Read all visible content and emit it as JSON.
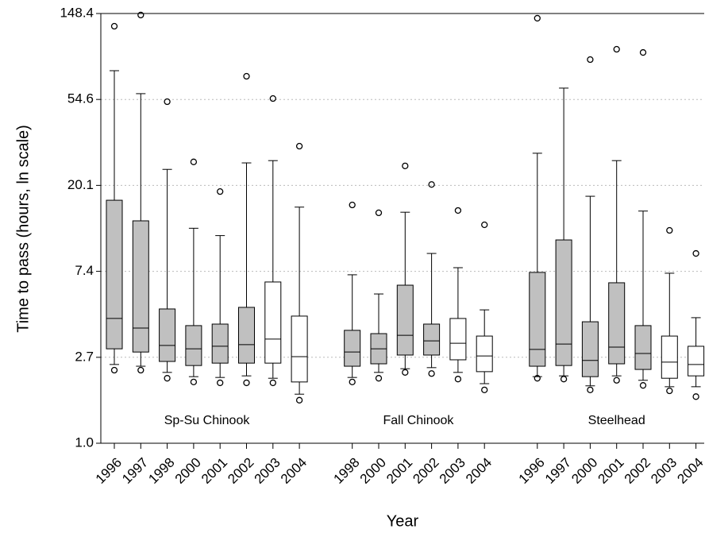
{
  "chart_data": {
    "type": "box",
    "y_label": "Time to pass (hours, ln scale)",
    "x_label": "Year",
    "log_scale": true,
    "grid": true,
    "ylim": [
      1,
      148.41
    ],
    "yticks": [
      {
        "value": 1,
        "label": "1.0"
      },
      {
        "value": 2.718,
        "label": "2.7"
      },
      {
        "value": 7.389,
        "label": "7.4"
      },
      {
        "value": 20.09,
        "label": "20.1"
      },
      {
        "value": 54.6,
        "label": "54.6"
      },
      {
        "value": 148.41,
        "label": "148.4"
      }
    ],
    "groups": [
      {
        "name": "Sp-Su Chinook",
        "boxes": [
          {
            "category": "1996",
            "color": "#c0c0c0",
            "whislo": 2.5,
            "q1": 3.0,
            "med": 4.27,
            "q3": 16.9,
            "whishi": 76.3,
            "fliers": [
              128,
              2.34
            ]
          },
          {
            "category": "1997",
            "color": "#c0c0c0",
            "whislo": 2.45,
            "q1": 2.89,
            "med": 3.82,
            "q3": 13.3,
            "whishi": 58.4,
            "fliers": [
              145.8,
              2.34
            ]
          },
          {
            "category": "1998",
            "color": "#c0c0c0",
            "whislo": 2.28,
            "q1": 2.59,
            "med": 3.12,
            "q3": 4.77,
            "whishi": 24.2,
            "fliers": [
              53.2,
              2.13
            ]
          },
          {
            "category": "2000",
            "color": "#c0c0c0",
            "whislo": 2.17,
            "q1": 2.47,
            "med": 3.0,
            "q3": 3.93,
            "whishi": 12.2,
            "fliers": [
              26.4,
              2.04
            ]
          },
          {
            "category": "2001",
            "color": "#c0c0c0",
            "whislo": 2.15,
            "q1": 2.54,
            "med": 3.09,
            "q3": 4.0,
            "whishi": 11.2,
            "fliers": [
              18.7,
              2.02
            ]
          },
          {
            "category": "2002",
            "color": "#c0c0c0",
            "whislo": 2.19,
            "q1": 2.54,
            "med": 3.15,
            "q3": 4.86,
            "whishi": 26.1,
            "fliers": [
              71.5,
              2.02
            ]
          },
          {
            "category": "2003",
            "color": "#ffffff",
            "whislo": 2.13,
            "q1": 2.54,
            "med": 3.36,
            "q3": 6.53,
            "whishi": 26.8,
            "fliers": [
              55.2,
              2.02
            ]
          },
          {
            "category": "2004",
            "color": "#ffffff",
            "whislo": 1.77,
            "q1": 2.04,
            "med": 2.74,
            "q3": 4.39,
            "whishi": 15.6,
            "fliers": [
              31.7,
              1.65
            ]
          }
        ]
      },
      {
        "name": "Fall Chinook",
        "boxes": [
          {
            "category": "1998",
            "color": "#c0c0c0",
            "whislo": 2.15,
            "q1": 2.45,
            "med": 2.89,
            "q3": 3.72,
            "whishi": 7.1,
            "fliers": [
              16.0,
              2.04
            ]
          },
          {
            "category": "2000",
            "color": "#c0c0c0",
            "whislo": 2.28,
            "q1": 2.52,
            "med": 3.0,
            "q3": 3.58,
            "whishi": 5.68,
            "fliers": [
              14.6,
              2.13
            ]
          },
          {
            "category": "2001",
            "color": "#c0c0c0",
            "whislo": 2.38,
            "q1": 2.79,
            "med": 3.51,
            "q3": 6.29,
            "whishi": 14.7,
            "fliers": [
              25.2,
              2.28
            ]
          },
          {
            "category": "2002",
            "color": "#c0c0c0",
            "whislo": 2.41,
            "q1": 2.79,
            "med": 3.29,
            "q3": 4.0,
            "whishi": 9.1,
            "fliers": [
              20.3,
              2.25
            ]
          },
          {
            "category": "2003",
            "color": "#ffffff",
            "whislo": 2.28,
            "q1": 2.64,
            "med": 3.2,
            "q3": 4.27,
            "whishi": 7.71,
            "fliers": [
              15.0,
              2.11
            ]
          },
          {
            "category": "2004",
            "color": "#ffffff",
            "whislo": 2.0,
            "q1": 2.3,
            "med": 2.76,
            "q3": 3.48,
            "whishi": 4.72,
            "fliers": [
              12.7,
              1.86
            ]
          }
        ]
      },
      {
        "name": "Steelhead",
        "boxes": [
          {
            "category": "1996",
            "color": "#c0c0c0",
            "whislo": 2.17,
            "q1": 2.45,
            "med": 2.98,
            "q3": 7.3,
            "whishi": 29.2,
            "fliers": [
              140.5,
              2.13
            ]
          },
          {
            "category": "1997",
            "color": "#c0c0c0",
            "whislo": 2.19,
            "q1": 2.47,
            "med": 3.17,
            "q3": 10.65,
            "whishi": 62.3,
            "fliers": [
              2.11
            ]
          },
          {
            "category": "2000",
            "color": "#c0c0c0",
            "whislo": 1.95,
            "q1": 2.17,
            "med": 2.62,
            "q3": 4.11,
            "whishi": 17.7,
            "fliers": [
              86.8,
              1.86
            ]
          },
          {
            "category": "2001",
            "color": "#c0c0c0",
            "whislo": 2.19,
            "q1": 2.52,
            "med": 3.06,
            "q3": 6.47,
            "whishi": 26.8,
            "fliers": [
              97.9,
              2.08
            ]
          },
          {
            "category": "2002",
            "color": "#c0c0c0",
            "whislo": 2.08,
            "q1": 2.36,
            "med": 2.84,
            "q3": 3.93,
            "whishi": 14.9,
            "fliers": [
              94.3,
              1.96
            ]
          },
          {
            "category": "2003",
            "color": "#ffffff",
            "whislo": 1.93,
            "q1": 2.13,
            "med": 2.57,
            "q3": 3.48,
            "whishi": 7.23,
            "fliers": [
              11.9,
              1.84
            ]
          },
          {
            "category": "2004",
            "color": "#ffffff",
            "whislo": 1.93,
            "q1": 2.19,
            "med": 2.5,
            "q3": 3.09,
            "whishi": 4.31,
            "fliers": [
              9.1,
              1.72
            ]
          }
        ]
      }
    ]
  }
}
